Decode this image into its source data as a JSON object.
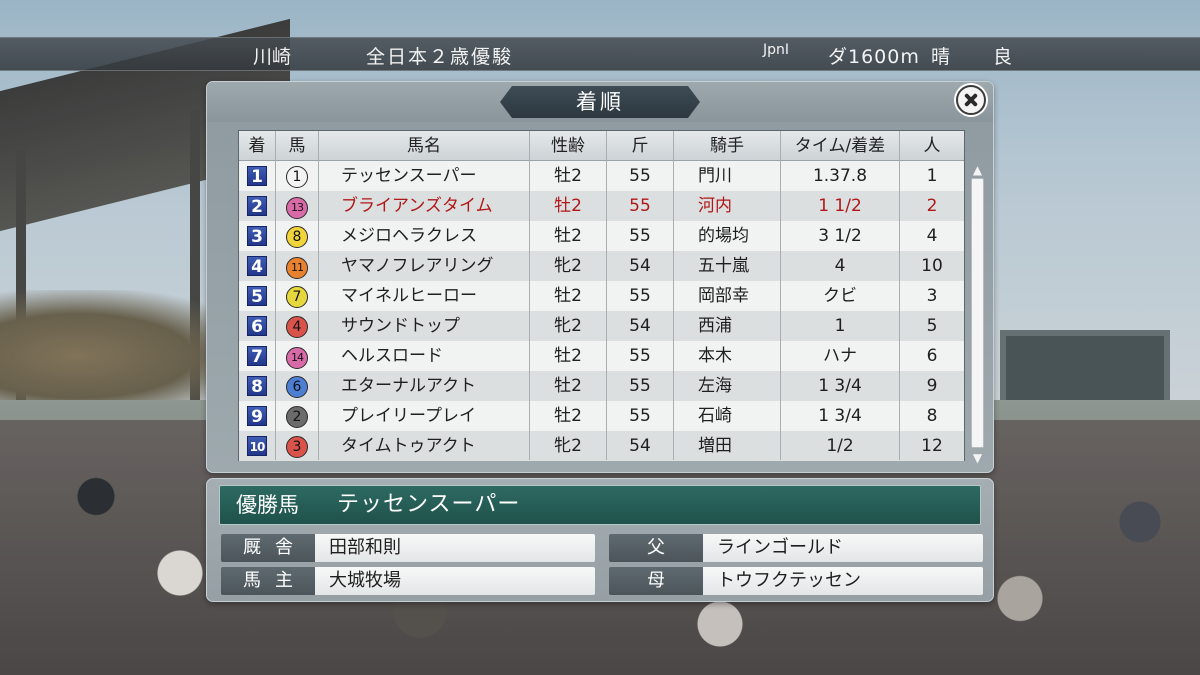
{
  "race_info": {
    "venue": "川崎",
    "race_name": "全日本２歳優駿",
    "grade": "JpnⅠ",
    "course": "ダ1600m",
    "weather": "晴",
    "going": "良"
  },
  "results_panel": {
    "title": "着順",
    "columns": {
      "pos": "着",
      "num": "馬",
      "name": "馬名",
      "sexage": "性齢",
      "weight": "斤",
      "jockey": "騎手",
      "time": "タイム/着差",
      "popularity": "人"
    },
    "rows": [
      {
        "pos": "1",
        "num": "1",
        "name": "テッセンスーパー",
        "sexage": "牡2",
        "weight": "55",
        "jockey": "門川",
        "time": "1.37.8",
        "popularity": "1",
        "color": "#f3f3f3"
      },
      {
        "pos": "2",
        "num": "13",
        "name": "ブライアンズタイム",
        "sexage": "牡2",
        "weight": "55",
        "jockey": "河内",
        "time": "1 1/2",
        "popularity": "2",
        "color": "#d96aa8"
      },
      {
        "pos": "3",
        "num": "8",
        "name": "メジロヘラクレス",
        "sexage": "牡2",
        "weight": "55",
        "jockey": "的場均",
        "time": "3 1/2",
        "popularity": "4",
        "color": "#f0d43a"
      },
      {
        "pos": "4",
        "num": "11",
        "name": "ヤマノフレアリング",
        "sexage": "牝2",
        "weight": "54",
        "jockey": "五十嵐",
        "time": "4",
        "popularity": "10",
        "color": "#e8822e"
      },
      {
        "pos": "5",
        "num": "7",
        "name": "マイネルヒーロー",
        "sexage": "牡2",
        "weight": "55",
        "jockey": "岡部幸",
        "time": "クビ",
        "popularity": "3",
        "color": "#e6d83c"
      },
      {
        "pos": "6",
        "num": "4",
        "name": "サウンドトップ",
        "sexage": "牝2",
        "weight": "54",
        "jockey": "西浦",
        "time": "1",
        "popularity": "5",
        "color": "#d9534a"
      },
      {
        "pos": "7",
        "num": "14",
        "name": "ヘルスロード",
        "sexage": "牡2",
        "weight": "55",
        "jockey": "本木",
        "time": "ハナ",
        "popularity": "6",
        "color": "#d96aa8"
      },
      {
        "pos": "8",
        "num": "6",
        "name": "エターナルアクト",
        "sexage": "牡2",
        "weight": "55",
        "jockey": "左海",
        "time": "1 3/4",
        "popularity": "9",
        "color": "#4c7fd4"
      },
      {
        "pos": "9",
        "num": "2",
        "name": "プレイリープレイ",
        "sexage": "牡2",
        "weight": "55",
        "jockey": "石崎",
        "time": "1 3/4",
        "popularity": "8",
        "color": "#6b6b6b"
      },
      {
        "pos": "10",
        "num": "3",
        "name": "タイムトゥアクト",
        "sexage": "牝2",
        "weight": "54",
        "jockey": "増田",
        "time": "1/2",
        "popularity": "12",
        "color": "#d9534a"
      }
    ],
    "highlight_row": 1,
    "highlight_color": "#b01818",
    "scroll_up_icon": "▲",
    "scroll_down_icon": "▼"
  },
  "winner": {
    "label": "優勝馬",
    "name": "テッセンスーパー",
    "trainer_label": "厩舎",
    "trainer": "田部和則",
    "owner_label": "馬主",
    "owner": "大城牧場",
    "sire_label": "父",
    "sire": "ラインゴールド",
    "dam_label": "母",
    "dam": "トウフクテッセン"
  }
}
